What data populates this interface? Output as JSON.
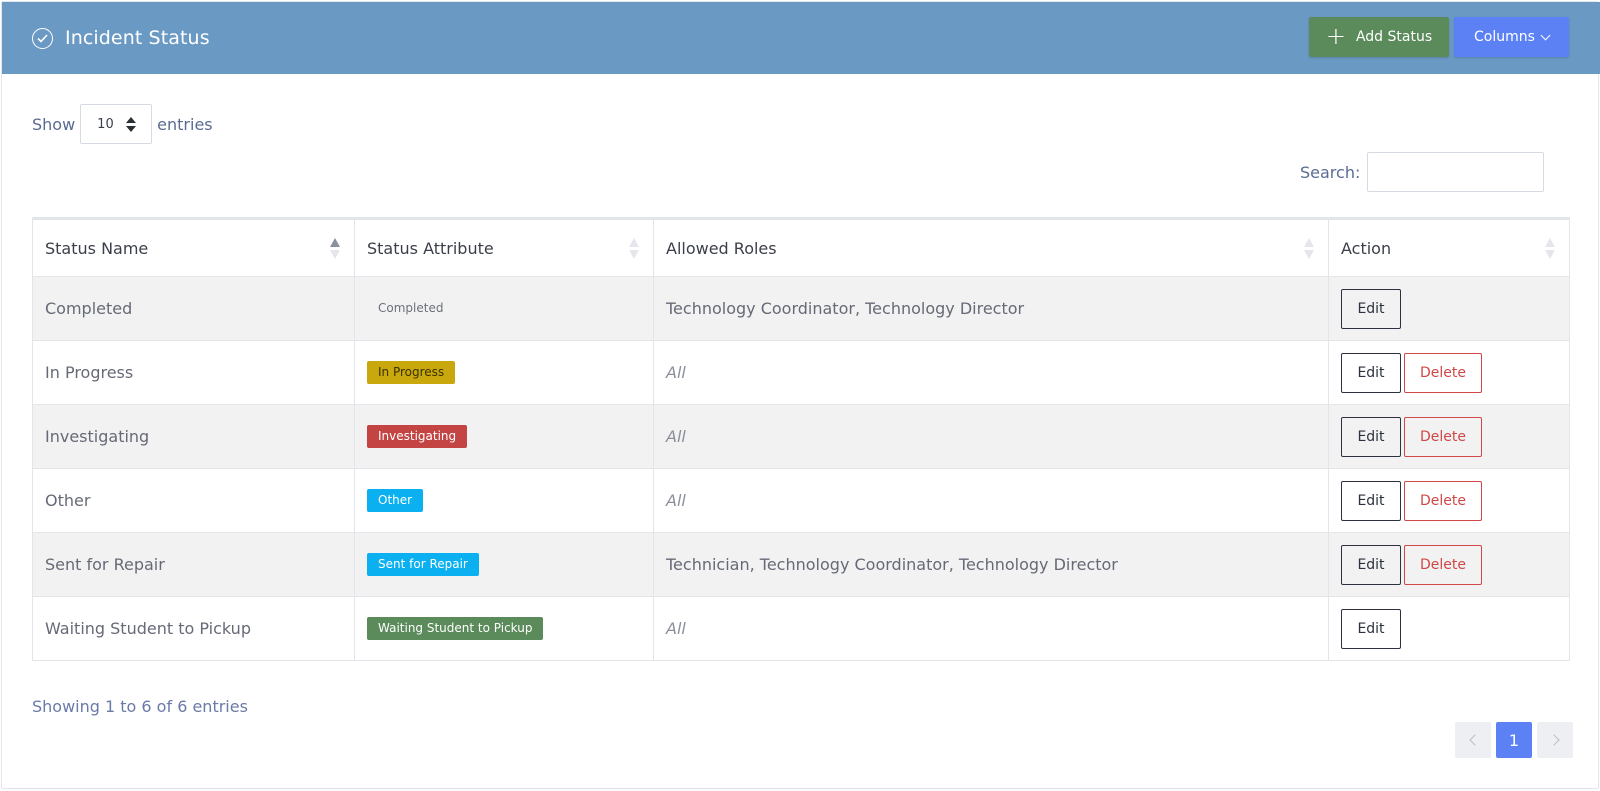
{
  "header": {
    "title": "Incident Status",
    "add_label": "Add Status",
    "columns_label": "Columns"
  },
  "length": {
    "prefix": "Show",
    "value": "10",
    "suffix": "entries"
  },
  "search": {
    "label": "Search:",
    "value": ""
  },
  "table": {
    "columns": [
      "Status Name",
      "Status Attribute",
      "Allowed Roles",
      "Action"
    ],
    "rows": [
      {
        "name": "Completed",
        "attribute": "Completed",
        "attribute_color": "",
        "attribute_text_color": "#6c707a",
        "roles": "Technology Coordinator, Technology Director",
        "roles_all": false,
        "edit": "Edit",
        "delete": ""
      },
      {
        "name": "In Progress",
        "attribute": "In Progress",
        "attribute_color": "#c9a80d",
        "attribute_text_color": "#3b3200",
        "roles": "All",
        "roles_all": true,
        "edit": "Edit",
        "delete": "Delete"
      },
      {
        "name": "Investigating",
        "attribute": "Investigating",
        "attribute_color": "#c44444",
        "attribute_text_color": "#ffffff",
        "roles": "All",
        "roles_all": true,
        "edit": "Edit",
        "delete": "Delete"
      },
      {
        "name": "Other",
        "attribute": "Other",
        "attribute_color": "#0ab0f0",
        "attribute_text_color": "#ffffff",
        "roles": "All",
        "roles_all": true,
        "edit": "Edit",
        "delete": "Delete"
      },
      {
        "name": "Sent for Repair",
        "attribute": "Sent for Repair",
        "attribute_color": "#0ab0f0",
        "attribute_text_color": "#ffffff",
        "roles": "Technician, Technology Coordinator, Technology Director",
        "roles_all": false,
        "edit": "Edit",
        "delete": "Delete"
      },
      {
        "name": "Waiting Student to Pickup",
        "attribute": "Waiting Student to Pickup",
        "attribute_color": "#5b8a5b",
        "attribute_text_color": "#ffffff",
        "roles": "All",
        "roles_all": true,
        "edit": "Edit",
        "delete": ""
      }
    ]
  },
  "info": "Showing 1 to 6 of 6 entries",
  "pagination": {
    "current": "1"
  },
  "colors": {
    "header_bg": "#6a9ac4",
    "add_button": "#5b8a5b",
    "primary": "#5b81f5",
    "danger": "#d04747"
  }
}
